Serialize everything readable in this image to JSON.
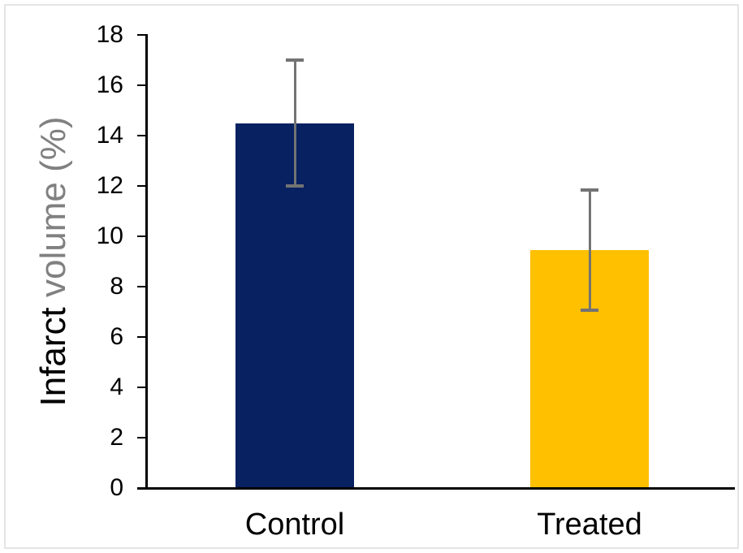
{
  "frame": {
    "border_color": "#e4e4e4",
    "background": "#ffffff"
  },
  "chart_data": {
    "type": "bar",
    "title": "",
    "categories": [
      "Control",
      "Treated"
    ],
    "values": [
      14.5,
      9.45
    ],
    "errors": [
      2.5,
      2.4
    ],
    "bar_colors": [
      "#072161",
      "#ffc000"
    ],
    "ylabel": "Infarct volume (%)",
    "ylabel_parts": [
      {
        "text": "Infarct ",
        "color": "#000000"
      },
      {
        "text": "volume (%)",
        "color": "#808080"
      }
    ],
    "ylim": [
      0,
      18
    ],
    "yticks": [
      0,
      2,
      4,
      6,
      8,
      10,
      12,
      14,
      16,
      18
    ],
    "grid": false,
    "legend_position": "none",
    "axis_color": "#000000",
    "tick_label_color": "#000000",
    "category_label_color": "#000000",
    "error_bar_color": "#737373"
  }
}
